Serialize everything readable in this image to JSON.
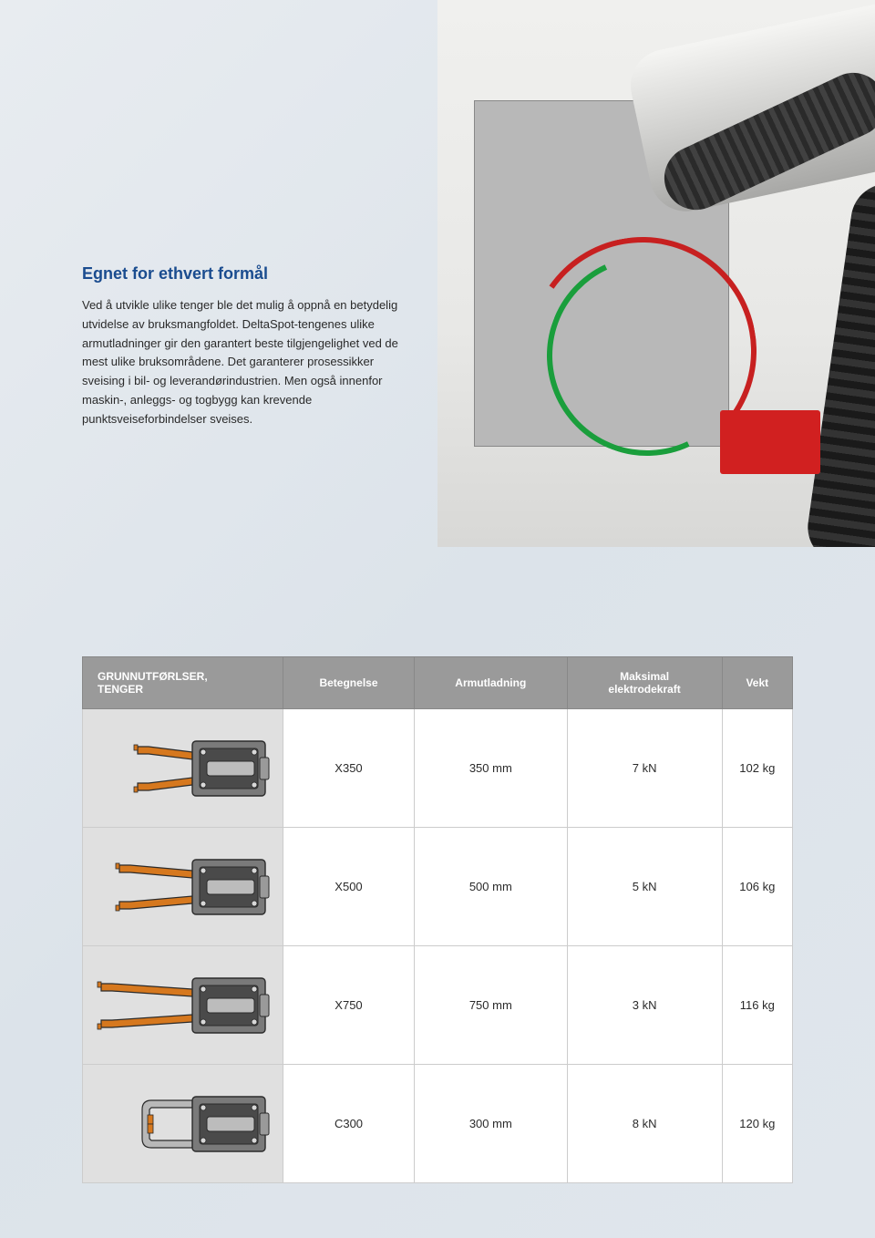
{
  "heading": "Egnet for ethvert formål",
  "body": "Ved å utvikle ulike tenger ble det mulig å oppnå en betydelig utvidelse av bruksmangfoldet. DeltaSpot-tengenes ulike armutladninger gir den garantert beste tilgjengelighet ved de mest ulike bruksområdene. Det garanterer prosessikker sveising i bil- og leverandørindustrien. Men også innenfor maskin-, anleggs- og togbygg kan krevende punktsveiseforbindelser sveises.",
  "table": {
    "header_col1_line1": "GRUNNUTFØRLSER,",
    "header_col1_line2": "TENGER",
    "header_col2": "Betegnelse",
    "header_col3": "Armutladning",
    "header_col4_line1": "Maksimal",
    "header_col4_line2": "elektrodekraft",
    "header_col5": "Vekt",
    "rows": [
      {
        "shape": "x",
        "arm_len": 60,
        "name": "X350",
        "arm": "350 mm",
        "force": "7 kN",
        "weight": "102 kg"
      },
      {
        "shape": "x",
        "arm_len": 80,
        "name": "X500",
        "arm": "500 mm",
        "force": "5 kN",
        "weight": "106 kg"
      },
      {
        "shape": "x",
        "arm_len": 100,
        "name": "X750",
        "arm": "750 mm",
        "force": "3 kN",
        "weight": "116 kg"
      },
      {
        "shape": "c",
        "arm_len": 55,
        "name": "C300",
        "arm": "300 mm",
        "force": "8 kN",
        "weight": "120 kg"
      }
    ]
  },
  "colors": {
    "heading": "#1a4c8f",
    "table_header_bg": "#9a9a9a",
    "table_header_fg": "#ffffff",
    "tool_body": "#7a7a7a",
    "tool_body_dark": "#4a4a4a",
    "tool_arm": "#d6781e",
    "tool_outline": "#2a2a2a",
    "diagram_bg": "#e0e0e0"
  }
}
